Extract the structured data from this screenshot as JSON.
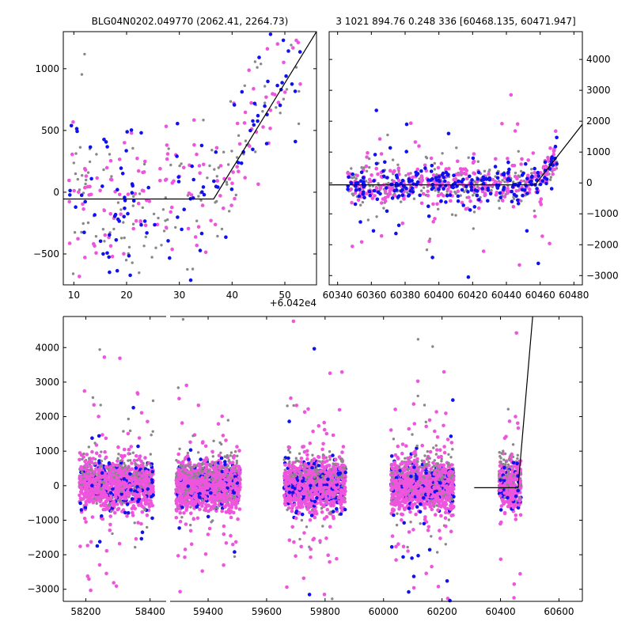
{
  "chart_data": [
    {
      "type": "scatter",
      "panel": "top-left-zoom",
      "title": "BLG04N0202.049770 (2062.41, 2264.73)",
      "x_offset_label": "+6.042e4",
      "xlim": [
        8,
        56
      ],
      "ylim": [
        -750,
        1300
      ],
      "xticks": [
        10,
        20,
        30,
        40,
        50
      ],
      "yticks": [
        -500,
        0,
        500,
        1000
      ],
      "grid": false,
      "model_line": {
        "x": [
          8,
          36.5,
          56
        ],
        "y": [
          -55,
          -55,
          1300
        ]
      },
      "series": [
        {
          "color": "#888888",
          "n": 120,
          "seed": 11
        },
        {
          "color": "#ee55dd",
          "n": 140,
          "seed": 12
        },
        {
          "color": "#1111ee",
          "n": 110,
          "seed": 13
        }
      ]
    },
    {
      "type": "scatter",
      "panel": "top-right",
      "title": "3 1021 894.76 0.248 336 [60468.135, 60471.947]",
      "xlim": [
        60335,
        60485
      ],
      "ylim": [
        -3300,
        4900
      ],
      "xticks": [
        60340,
        60360,
        60380,
        60400,
        60420,
        60440,
        60460,
        60480
      ],
      "yticks": [
        -3000,
        -2000,
        -1000,
        0,
        1000,
        2000,
        3000,
        4000
      ],
      "yaxis_side": "right",
      "grid": false,
      "model_line": {
        "x": [
          60335,
          60457,
          60485
        ],
        "y": [
          -60,
          -60,
          1900
        ]
      },
      "series": [
        {
          "color": "#888888",
          "n": 260,
          "seed": 21
        },
        {
          "color": "#ee55dd",
          "n": 330,
          "seed": 22
        },
        {
          "color": "#1111ee",
          "n": 240,
          "seed": 23
        }
      ]
    },
    {
      "type": "scatter",
      "panel": "bottom-full",
      "xlim": [
        58130,
        60680
      ],
      "ylim": [
        -3350,
        4900
      ],
      "xticks": [
        58200,
        58400,
        59400,
        59600,
        59800,
        60000,
        60200,
        60400,
        60600
      ],
      "yticks": [
        -3000,
        -2000,
        -1000,
        0,
        1000,
        2000,
        3000,
        4000
      ],
      "grid": false,
      "axis_break": [
        58450,
        59270
      ],
      "model_line": {
        "x": [
          60310,
          60460,
          60510
        ],
        "y": [
          -60,
          -60,
          4900
        ]
      },
      "seasons": [
        {
          "x": [
            58180,
            58410
          ],
          "n": 1300
        },
        {
          "x": [
            59290,
            59510
          ],
          "n": 1400
        },
        {
          "x": [
            59660,
            59870
          ],
          "n": 1400
        },
        {
          "x": [
            60025,
            60240
          ],
          "n": 1400
        },
        {
          "x": [
            60395,
            60470
          ],
          "n": 450
        }
      ],
      "series": [
        {
          "color": "#888888",
          "seed": 31
        },
        {
          "color": "#1111ee",
          "seed": 32
        },
        {
          "color": "#ee55dd",
          "seed": 33
        }
      ]
    }
  ]
}
